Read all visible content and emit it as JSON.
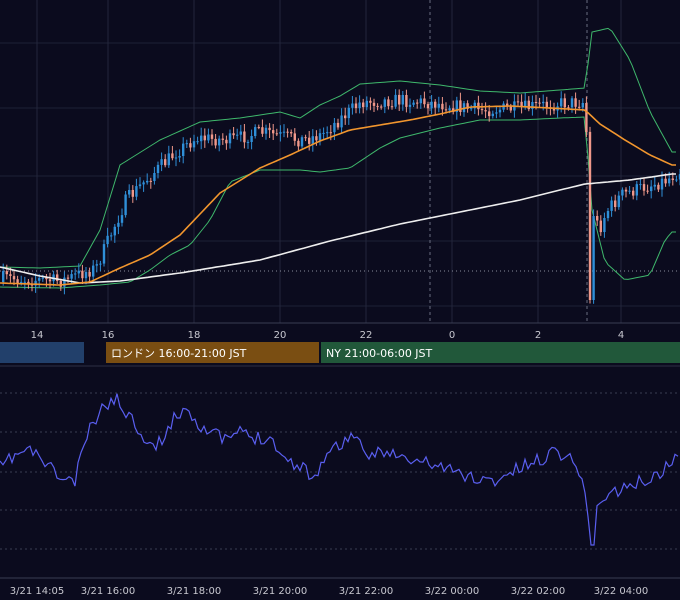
{
  "chart_data": [
    {
      "type": "candlestick",
      "panel": "price",
      "indicators": [
        "bollinger-bands",
        "ema-orange",
        "ma-white"
      ],
      "x_ticks": [
        "14",
        "16",
        "18",
        "20",
        "22",
        "0",
        "2",
        "4"
      ],
      "sessions": [
        {
          "label": "",
          "color": "#22406b"
        },
        {
          "label": "ロンドン 16:00-21:00 JST",
          "color": "#7a4e12"
        },
        {
          "label": "NY 21:00-06:00 JST",
          "color": "#21583a"
        }
      ],
      "grid": true,
      "colors": {
        "up": "#2f8fd8",
        "down": "#f0988a",
        "ema": "#f2962e",
        "ma": "#eeeeee",
        "bands": "#3fb86c"
      }
    },
    {
      "type": "line",
      "panel": "oscillator",
      "color": "#5a5ff0",
      "x_ticks": [
        "3/21 14:05",
        "3/21 16:00",
        "3/21 18:00",
        "3/21 20:00",
        "3/21 22:00",
        "3/22 00:00",
        "3/22 02:00",
        "3/22 04:00"
      ],
      "grid": true
    }
  ]
}
